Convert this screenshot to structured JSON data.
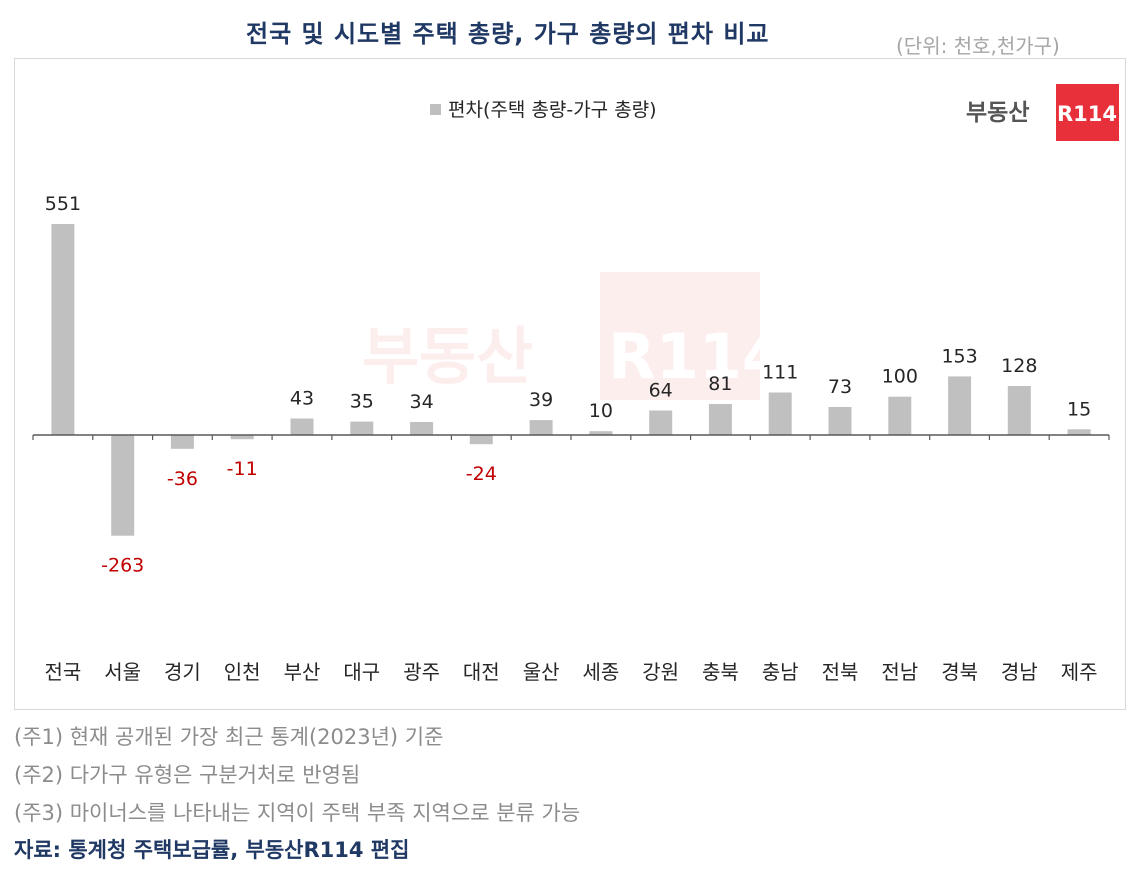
{
  "header": {
    "title": "전국 및 시도별 주택 총량, 가구 총량의 편차 비교",
    "unit": "(단위: 천호,천가구)"
  },
  "logo": {
    "text": "부동산",
    "badge": "R114",
    "badge_color": "#e8303a"
  },
  "colors": {
    "bar": "#c0c0c0",
    "negative_label": "#c00000",
    "positive_label": "#262626",
    "title": "#1f3864",
    "note": "#8c8c8c"
  },
  "chart_data": {
    "type": "bar",
    "legend": {
      "label": "편차(주택 총량-가구 총량)",
      "position": "top-center"
    },
    "categories": [
      "전국",
      "서울",
      "경기",
      "인천",
      "부산",
      "대구",
      "광주",
      "대전",
      "울산",
      "세종",
      "강원",
      "충북",
      "충남",
      "전북",
      "전남",
      "경북",
      "경남",
      "제주"
    ],
    "series": [
      {
        "name": "편차(주택 총량-가구 총량)",
        "values": [
          551,
          -263,
          -36,
          -11,
          43,
          35,
          34,
          -24,
          39,
          10,
          64,
          81,
          111,
          73,
          100,
          153,
          128,
          15
        ]
      }
    ],
    "data_labels": [
      "551",
      "-263",
      "-36",
      "-11",
      "43",
      "35",
      "34",
      "-24",
      "39",
      "10",
      "64",
      "81",
      "111",
      "73",
      "100",
      "153",
      "128",
      "15"
    ],
    "ylim": [
      -263,
      551
    ],
    "grid": false
  },
  "notes": [
    "(주1) 현재 공개된 가장 최근 통계(2023년) 기준",
    "(주2) 다가구 유형은 구분거처로 반영됨",
    "(주3) 마이너스를 나타내는 지역이 주택 부족 지역으로 분류 가능"
  ],
  "source": "자료: 통계청 주택보급률, 부동산R114 편집"
}
